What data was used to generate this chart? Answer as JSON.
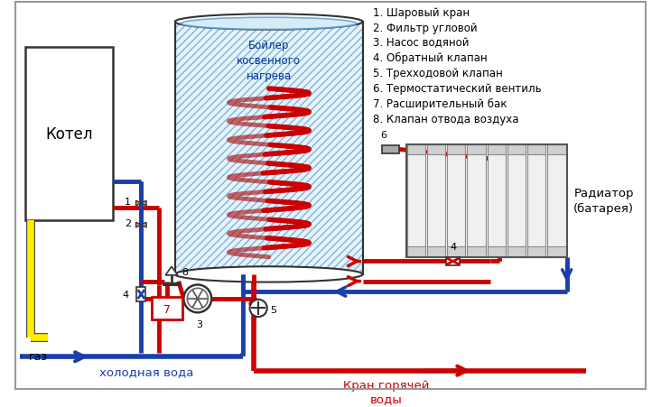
{
  "bg_color": "#ffffff",
  "legend_items": [
    "1. Шаровый кран",
    "2. Фильтр угловой",
    "3. Насос водяной",
    "4. Обратный клапан",
    "5. Трехходовой клапан",
    "6. Термостатический вентиль",
    "7. Расширительный бак",
    "8. Клапан отвода воздуха"
  ],
  "label_kotel": "Котел",
  "label_boiler": "Бойлер\nкосвенного\nнагрева",
  "label_radiator": "Радиатор\n(батарея)",
  "label_gaz": "газ",
  "label_cold": "холодная вода",
  "label_hot": "Кран горячей\nводы",
  "red": "#cc0000",
  "blue": "#1a3faa",
  "yellow": "#ffee00",
  "light_blue_fill": "#cce8f8",
  "outline": "#333333"
}
